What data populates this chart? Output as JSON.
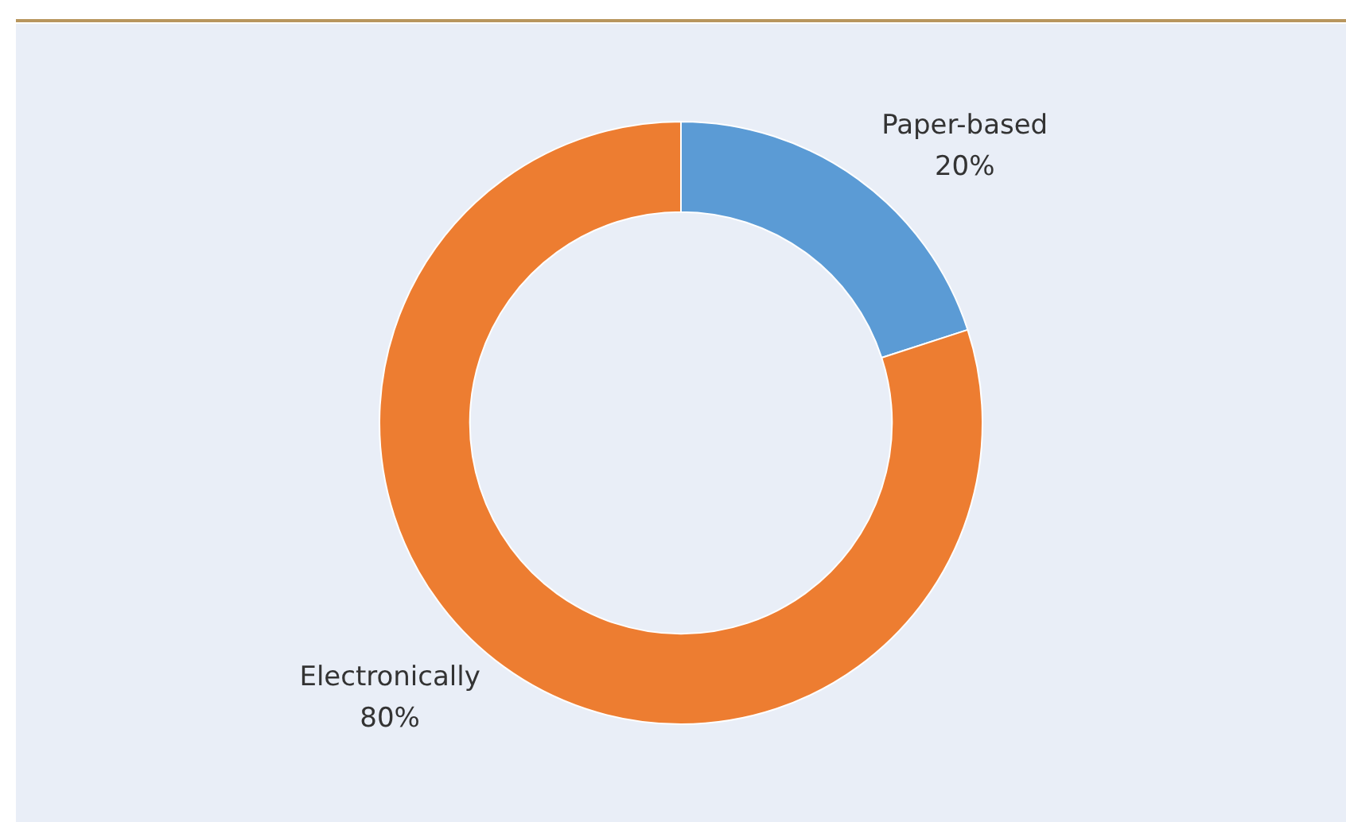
{
  "chart_data": {
    "type": "donut",
    "categories": [
      "Paper-based",
      "Electronically"
    ],
    "values": [
      20,
      80
    ],
    "value_labels": [
      "20%",
      "80%"
    ],
    "colors": [
      "#5b9bd5",
      "#ed7d31"
    ],
    "legend": false
  }
}
